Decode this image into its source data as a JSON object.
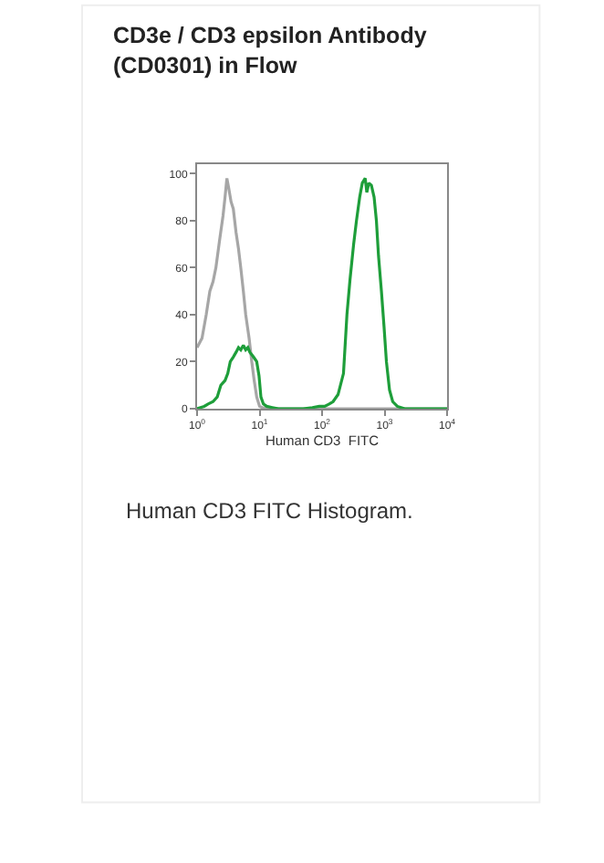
{
  "chart_data": {
    "type": "line",
    "title": "CD3e / CD3 epsilon Antibody (CD0301) in Flow",
    "xlabel": "Human CD3  FITC",
    "log": "x",
    "xlim": [
      1,
      10000
    ],
    "xticks": [
      {
        "value": 1,
        "label": "10$^{0}$"
      },
      {
        "value": 10,
        "label": "10$^{1}$"
      },
      {
        "value": 100,
        "label": "10$^{2}$"
      },
      {
        "value": 1000,
        "label": "10$^{3}$"
      },
      {
        "value": 10000,
        "label": "10$^{4}$"
      }
    ],
    "ylim": [
      0,
      104
    ],
    "yticks": [
      0,
      20,
      40,
      60,
      80,
      100
    ],
    "marker": "none",
    "line_style": "solid",
    "annotations": [
      "Human CD3 FITC Histogram."
    ],
    "series": [
      {
        "color": "#a6a6a6",
        "x": [
          1,
          1.2,
          1.4,
          1.6,
          1.8,
          2,
          2.3,
          2.6,
          2.8,
          3,
          3.2,
          3.5,
          3.8,
          4.2,
          4.6,
          5,
          5.5,
          6,
          6.8,
          7.5,
          8.2,
          9,
          10,
          11,
          13,
          20,
          50,
          200,
          1000,
          10000
        ],
        "values": [
          26,
          30,
          40,
          50,
          54,
          60,
          72,
          82,
          90,
          98,
          94,
          88,
          85,
          75,
          68,
          60,
          50,
          40,
          30,
          20,
          12,
          5,
          1,
          0.5,
          0,
          0,
          0,
          0,
          0,
          0
        ]
      },
      {
        "color": "#1e9e3a",
        "x": [
          1,
          1.3,
          1.5,
          1.8,
          2.1,
          2.4,
          2.8,
          3.1,
          3.4,
          3.8,
          4.2,
          4.6,
          5,
          5.5,
          6,
          6.5,
          7,
          8,
          9,
          9.8,
          10.5,
          11.5,
          13,
          16,
          20,
          30,
          50,
          70,
          90,
          110,
          130,
          150,
          180,
          220,
          250,
          280,
          320,
          355,
          400,
          440,
          490,
          520,
          560,
          615,
          680,
          740,
          800,
          890,
          980,
          1070,
          1200,
          1350,
          1600,
          2100,
          3000,
          5000,
          10000
        ],
        "values": [
          0,
          1,
          2,
          3,
          5,
          10,
          12,
          15,
          20,
          22,
          24,
          26,
          25,
          27,
          25,
          26,
          24,
          22,
          20,
          14,
          5,
          2,
          1,
          0.5,
          0,
          0,
          0,
          0.5,
          1,
          1,
          2,
          3,
          6,
          15,
          40,
          55,
          70,
          80,
          90,
          96,
          98,
          92,
          96,
          95,
          90,
          80,
          65,
          50,
          35,
          20,
          8,
          3,
          1,
          0,
          0,
          0,
          0
        ]
      }
    ]
  }
}
